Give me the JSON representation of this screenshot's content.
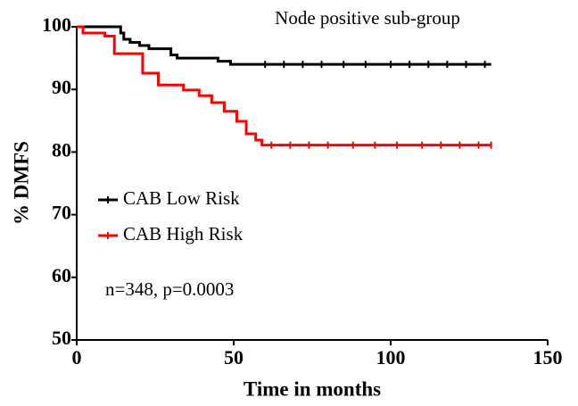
{
  "chart_data": {
    "type": "line",
    "step": true,
    "title": "Node positive sub-group",
    "annotation": "n=348, p=0.0003",
    "x_label": "Time in months",
    "y_label": "% DMFS",
    "xlim": [
      0,
      150
    ],
    "ylim": [
      50,
      100
    ],
    "xticks": [
      0,
      50,
      100,
      150
    ],
    "yticks": [
      50,
      60,
      70,
      80,
      90,
      100
    ],
    "legend": "left",
    "series": [
      {
        "name": "CAB Low Risk",
        "color": "#000000",
        "x": [
          0,
          14,
          14,
          15,
          15,
          17,
          17,
          20,
          20,
          23,
          23,
          30,
          30,
          32,
          32,
          45,
          45,
          49,
          49,
          132
        ],
        "values": [
          100,
          100,
          99,
          99,
          98,
          98,
          97.5,
          97.5,
          97,
          97,
          96.5,
          96.5,
          95.5,
          95.5,
          95,
          95,
          94.5,
          94.5,
          94,
          94
        ],
        "censored": [
          60,
          66,
          72,
          78,
          85,
          92,
          100,
          106,
          112,
          118,
          124,
          130
        ]
      },
      {
        "name": "CAB High Risk",
        "color": "#ff0000",
        "x": [
          0,
          2,
          2,
          9,
          9,
          12,
          12,
          21,
          21,
          26,
          26,
          34,
          34,
          39,
          39,
          43,
          43,
          47,
          47,
          51,
          51,
          54,
          54,
          57,
          57,
          59,
          59,
          132
        ],
        "values": [
          100,
          100,
          99,
          99,
          98.5,
          98.5,
          95.7,
          95.7,
          92.6,
          92.6,
          90.7,
          90.7,
          89.9,
          89.9,
          89,
          89,
          87.9,
          87.9,
          86.5,
          86.5,
          84.9,
          84.9,
          82.9,
          82.9,
          81.9,
          81.9,
          81.1,
          81.1
        ],
        "censored": [
          62,
          68,
          74,
          80,
          88,
          95,
          102,
          110,
          116,
          122,
          128,
          132
        ]
      }
    ]
  }
}
